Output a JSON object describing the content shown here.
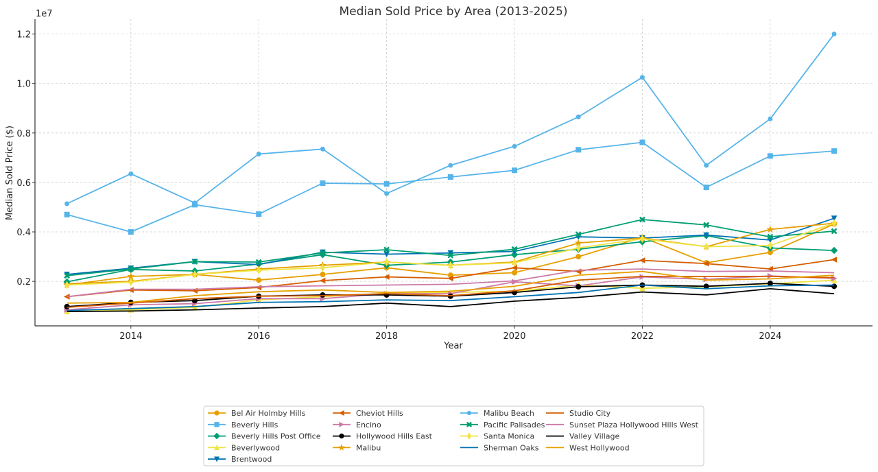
{
  "chart_data": {
    "type": "line",
    "title": "Median Sold Price by Area (2013-2025)",
    "xlabel": "Year",
    "ylabel": "Median Sold Price ($)",
    "y_offset_label": "1e7",
    "x": [
      2013,
      2014,
      2015,
      2016,
      2017,
      2018,
      2019,
      2020,
      2021,
      2022,
      2023,
      2024,
      2025
    ],
    "xticks": [
      2014,
      2016,
      2018,
      2020,
      2022,
      2024
    ],
    "xtick_labels": [
      "2014",
      "2016",
      "2018",
      "2020",
      "2022",
      "2024"
    ],
    "yticks": [
      2000000,
      4000000,
      6000000,
      8000000,
      10000000,
      12000000
    ],
    "ytick_labels": [
      "0.2",
      "0.4",
      "0.6",
      "0.8",
      "1.0",
      "1.2"
    ],
    "xlim": [
      2012.5,
      2025.6
    ],
    "ylim": [
      200000,
      12600000
    ],
    "grid": true,
    "legend_position": "bottom-center",
    "series": [
      {
        "name": "Bel Air Holmby Hills",
        "color": "#E69F00",
        "marker": "circle",
        "values": [
          1900000,
          2000000,
          2280000,
          2050000,
          2280000,
          2550000,
          2250000,
          2350000,
          3000000,
          3780000,
          2750000,
          3170000,
          4320000
        ]
      },
      {
        "name": "Beverly Hills",
        "color": "#56B4E9",
        "marker": "square",
        "values": [
          4700000,
          4000000,
          5100000,
          4720000,
          5970000,
          5940000,
          6220000,
          6490000,
          7320000,
          7620000,
          5800000,
          7070000,
          7270000
        ]
      },
      {
        "name": "Beverly Hills Post Office",
        "color": "#009E73",
        "marker": "diamond",
        "values": [
          1980000,
          2480000,
          2420000,
          2700000,
          3080000,
          2650000,
          2780000,
          3080000,
          3300000,
          3600000,
          3850000,
          3350000,
          3250000
        ]
      },
      {
        "name": "Beverlywood",
        "color": "#F0E442",
        "marker": "triangle-up",
        "values": [
          780000,
          850000,
          950000,
          1250000,
          1380000,
          1520000,
          1550000,
          1600000,
          1850000,
          1720000,
          1780000,
          1900000,
          2050000
        ]
      },
      {
        "name": "Brentwood",
        "color": "#0072B2",
        "marker": "triangle-down",
        "values": [
          2280000,
          2530000,
          2800000,
          2680000,
          3180000,
          3100000,
          3150000,
          3210000,
          3800000,
          3750000,
          3870000,
          3670000,
          4550000
        ]
      },
      {
        "name": "Cheviot Hills",
        "color": "#D55E00",
        "marker": "triangle-left",
        "values": [
          1380000,
          1650000,
          1620000,
          1750000,
          2030000,
          2180000,
          2120000,
          2550000,
          2400000,
          2850000,
          2720000,
          2500000,
          2880000
        ]
      },
      {
        "name": "Encino",
        "color": "#CC79A7",
        "marker": "triangle-right",
        "values": [
          850000,
          1050000,
          1100000,
          1300000,
          1300000,
          1500000,
          1500000,
          1980000,
          1820000,
          2180000,
          2080000,
          2220000,
          2120000
        ]
      },
      {
        "name": "Hollywood Hills East",
        "color": "#000000",
        "marker": "octagon",
        "values": [
          980000,
          1150000,
          1220000,
          1400000,
          1450000,
          1450000,
          1400000,
          1550000,
          1780000,
          1850000,
          1800000,
          1920000,
          1800000
        ]
      },
      {
        "name": "Malibu",
        "color": "#E69F00",
        "marker": "star",
        "values": [
          1850000,
          2200000,
          2280000,
          2500000,
          2650000,
          2780000,
          2650000,
          2780000,
          3550000,
          3750000,
          3400000,
          4100000,
          4350000
        ]
      },
      {
        "name": "Malibu Beach",
        "color": "#56B4E9",
        "marker": "hexagon",
        "values": [
          5140000,
          6350000,
          5170000,
          7150000,
          7350000,
          5550000,
          6690000,
          7460000,
          8650000,
          10250000,
          6690000,
          8570000,
          12000000
        ]
      },
      {
        "name": "Pacific Palisades",
        "color": "#009E73",
        "marker": "x",
        "values": [
          2230000,
          2500000,
          2800000,
          2780000,
          3150000,
          3280000,
          3050000,
          3300000,
          3900000,
          4500000,
          4280000,
          3800000,
          4030000
        ]
      },
      {
        "name": "Santa Monica",
        "color": "#F0E442",
        "marker": "thin-diamond",
        "values": [
          1850000,
          1970000,
          2280000,
          2450000,
          2550000,
          2780000,
          2650000,
          2750000,
          3350000,
          3720000,
          3400000,
          3450000,
          4350000
        ]
      },
      {
        "name": "Sherman Oaks",
        "color": "#0072B2",
        "marker": "none",
        "values": [
          820000,
          900000,
          980000,
          1150000,
          1180000,
          1250000,
          1220000,
          1380000,
          1550000,
          1850000,
          1700000,
          1820000,
          1850000
        ]
      },
      {
        "name": "Studio City",
        "color": "#D55E00",
        "marker": "none",
        "values": [
          950000,
          1120000,
          1300000,
          1400000,
          1420000,
          1500000,
          1420000,
          1620000,
          2050000,
          2200000,
          2200000,
          2200000,
          2150000
        ]
      },
      {
        "name": "Sunset Plaza Hollywood Hills West",
        "color": "#CC79A7",
        "marker": "none",
        "values": [
          1380000,
          1680000,
          1680000,
          1780000,
          1820000,
          1850000,
          1880000,
          2020000,
          2450000,
          2500000,
          2400000,
          2420000,
          2350000
        ]
      },
      {
        "name": "Valley Village",
        "color": "#000000",
        "marker": "none",
        "values": [
          780000,
          800000,
          850000,
          920000,
          980000,
          1120000,
          980000,
          1200000,
          1350000,
          1570000,
          1450000,
          1700000,
          1500000
        ]
      },
      {
        "name": "West Hollywood",
        "color": "#E69F00",
        "marker": "none",
        "values": [
          1120000,
          1150000,
          1420000,
          1580000,
          1650000,
          1550000,
          1600000,
          1800000,
          2250000,
          2400000,
          2050000,
          2100000,
          2250000
        ]
      }
    ]
  }
}
